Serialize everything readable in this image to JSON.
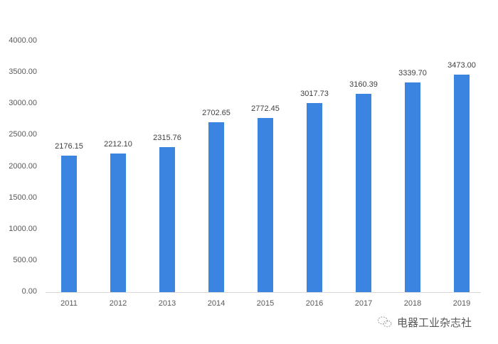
{
  "chart_data": {
    "type": "bar",
    "title": "",
    "xlabel": "",
    "ylabel": "",
    "categories": [
      "2011",
      "2012",
      "2013",
      "2014",
      "2015",
      "2016",
      "2017",
      "2018",
      "2019"
    ],
    "values": [
      2176.15,
      2212.1,
      2315.76,
      2702.65,
      2772.45,
      3017.73,
      3160.39,
      3339.7,
      3473.0
    ],
    "value_labels": [
      "2176.15",
      "2212.10",
      "2315.76",
      "2702.65",
      "2772.45",
      "3017.73",
      "3160.39",
      "3339.70",
      "3473.00"
    ],
    "ylim": [
      0,
      4000
    ],
    "yticks": [
      "0.00",
      "500.00",
      "1000.00",
      "1500.00",
      "2000.00",
      "2500.00",
      "3000.00",
      "3500.00",
      "4000.00"
    ],
    "ytick_values": [
      0,
      500,
      1000,
      1500,
      2000,
      2500,
      3000,
      3500,
      4000
    ],
    "grid": false,
    "legend": null,
    "bar_color": "#3b84e0"
  },
  "watermark": {
    "text": "电器工业杂志社",
    "icon": "wechat-icon"
  }
}
